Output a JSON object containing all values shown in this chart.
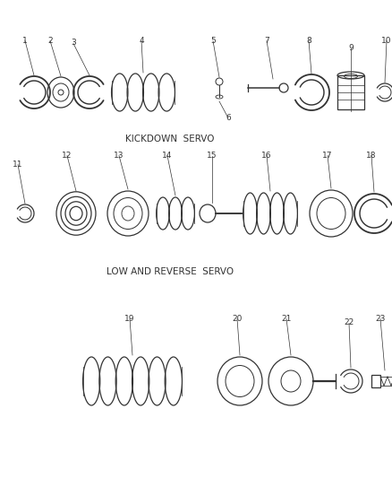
{
  "background_color": "#ffffff",
  "line_color": "#333333",
  "section1_label": "KICKDOWN  SERVO",
  "section2_label": "LOW AND REVERSE  SERVO",
  "font_size_label": 7.5,
  "font_size_number": 6.5,
  "figw": 4.38,
  "figh": 5.33,
  "dpi": 100
}
